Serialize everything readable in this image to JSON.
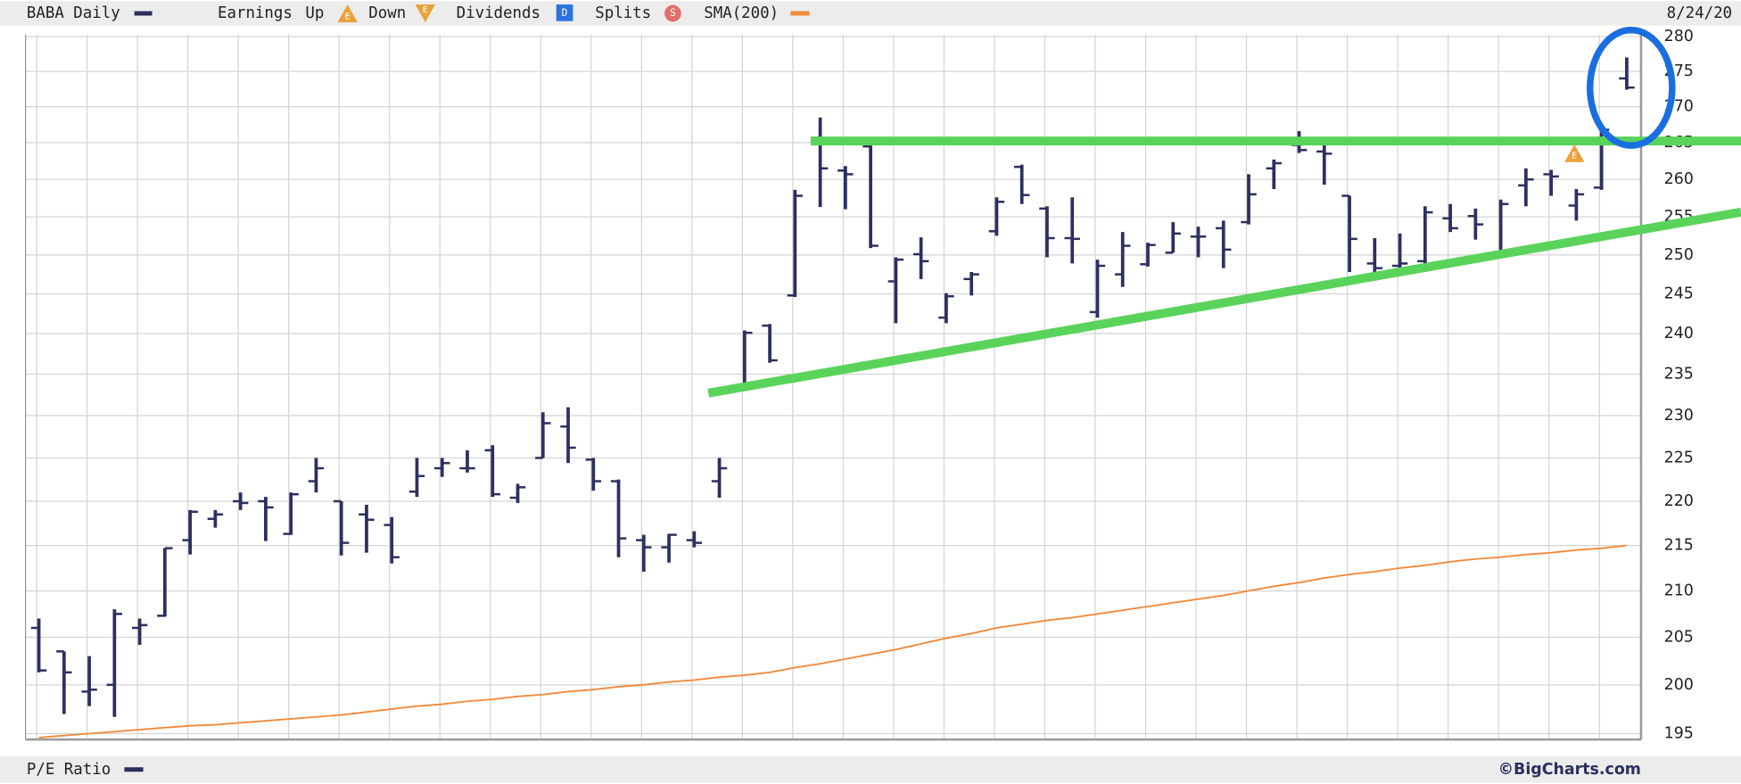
{
  "chart_data": {
    "type": "ohlc",
    "log_scale": true,
    "grid": true,
    "date_label": "8/24/20",
    "ylim": [
      194.4,
      280
    ],
    "yticks": [
      195,
      200,
      205,
      210,
      215,
      220,
      225,
      230,
      235,
      240,
      245,
      250,
      255,
      260,
      265,
      270,
      275,
      280
    ],
    "event_legend": {
      "earnings": "Earnings",
      "up": "Up",
      "down": "Down",
      "dividends": "Dividends",
      "splits": "Splits",
      "earnings_icon": "E",
      "dividends_icon": "D",
      "splits_icon": "S"
    },
    "lower_panel_label": "P/E Ratio",
    "credit": "©BigCharts.com",
    "series": [
      {
        "name": "BABA Daily",
        "color": "#2d2f5f",
        "open": [
          206,
          203.5,
          199.3,
          200,
          206,
          207.3,
          215.6,
          218,
          220,
          220,
          216.3,
          222.3,
          220,
          218.5,
          217.3,
          221.1,
          223.8,
          223.8,
          225.9,
          220.4,
          225,
          228.7,
          224.8,
          222.3,
          215.6,
          214.8,
          215.6,
          222.3,
          233.7,
          241,
          244.8,
          265.7,
          261.2,
          264.5,
          246.6,
          250.1,
          242,
          246.9,
          253.1,
          261.7,
          256.1,
          252.2,
          242.7,
          247.5,
          248.8,
          250.3,
          252.4,
          253.5,
          254.3,
          261.5,
          264.7,
          263.8,
          257.8,
          248.9,
          248.6,
          249.2,
          254.8,
          255.1,
          250.3,
          259.2,
          260.7,
          256.5,
          258.9,
          274
        ],
        "high": [
          207,
          203.5,
          203,
          208,
          207,
          214.7,
          219,
          219,
          221,
          220.5,
          221,
          225,
          220,
          219.6,
          218.2,
          225,
          225,
          225.9,
          226.5,
          222,
          230.4,
          231,
          225,
          222.5,
          216.2,
          216.3,
          216.6,
          225,
          240.4,
          241.2,
          258.6,
          268.5,
          261.8,
          265.5,
          249.7,
          252.3,
          245.1,
          247.8,
          257.6,
          262,
          256.4,
          257.6,
          249.4,
          253,
          251.6,
          254.3,
          253.7,
          254.5,
          260.7,
          262.7,
          266.6,
          265.5,
          257.8,
          252.2,
          252.8,
          256.4,
          256.7,
          256.1,
          257.3,
          261.5,
          261.3,
          258.7,
          267.6,
          277
        ],
        "low": [
          201.3,
          197,
          197.8,
          196.7,
          204.2,
          207.2,
          214,
          217,
          219,
          215.5,
          216.2,
          221,
          213.9,
          214.2,
          213,
          220.5,
          222.8,
          223.3,
          220.5,
          219.8,
          225,
          224.4,
          221.2,
          213.7,
          212.1,
          213.1,
          214.8,
          220.4,
          233.7,
          236.4,
          244.6,
          256.3,
          256,
          250.9,
          241.3,
          246.9,
          241.3,
          244.8,
          252.5,
          256.7,
          249.7,
          248.9,
          242,
          245.9,
          248.5,
          250.3,
          249.7,
          248.3,
          254,
          258.7,
          263.6,
          259.3,
          247.8,
          247.8,
          248.3,
          248.5,
          253,
          252,
          250.3,
          256.4,
          257.8,
          254.5,
          258.6,
          272.4
        ],
        "close": [
          201.5,
          201.3,
          199.5,
          207.5,
          206.3,
          214.7,
          218.8,
          218.5,
          219.8,
          219.3,
          220.8,
          223.8,
          215.3,
          217.9,
          213.7,
          222.9,
          224.4,
          223.8,
          220.8,
          221.6,
          229.1,
          226.2,
          222.3,
          215.8,
          214.8,
          216.2,
          215.3,
          223.8,
          240.1,
          236.7,
          257.8,
          261.5,
          260.7,
          251.2,
          249.4,
          249.2,
          244.7,
          247.5,
          257,
          257.9,
          252.2,
          252.1,
          248.6,
          251.2,
          251.3,
          252.8,
          252.4,
          250.7,
          258,
          262.2,
          264,
          263.5,
          252.1,
          248.3,
          248.9,
          255.6,
          253.5,
          254,
          256.7,
          260,
          260.4,
          258,
          266.8,
          272.7
        ]
      },
      {
        "name": "SMA(200)",
        "color": "#f08a3c",
        "values": [
          194.6,
          194.8,
          195,
          195.2,
          195.4,
          195.6,
          195.8,
          195.9,
          196.1,
          196.3,
          196.5,
          196.7,
          196.9,
          197.2,
          197.5,
          197.8,
          198,
          198.3,
          198.5,
          198.8,
          199,
          199.3,
          199.5,
          199.8,
          200,
          200.3,
          200.5,
          200.8,
          201,
          201.3,
          201.8,
          202.2,
          202.7,
          203.2,
          203.7,
          204.3,
          204.9,
          205.4,
          206,
          206.4,
          206.8,
          207.1,
          207.5,
          207.9,
          208.3,
          208.7,
          209.1,
          209.5,
          210,
          210.5,
          210.9,
          211.4,
          211.8,
          212.1,
          212.5,
          212.8,
          213.2,
          213.5,
          213.7,
          214,
          214.2,
          214.5,
          214.7,
          215
        ]
      }
    ]
  }
}
